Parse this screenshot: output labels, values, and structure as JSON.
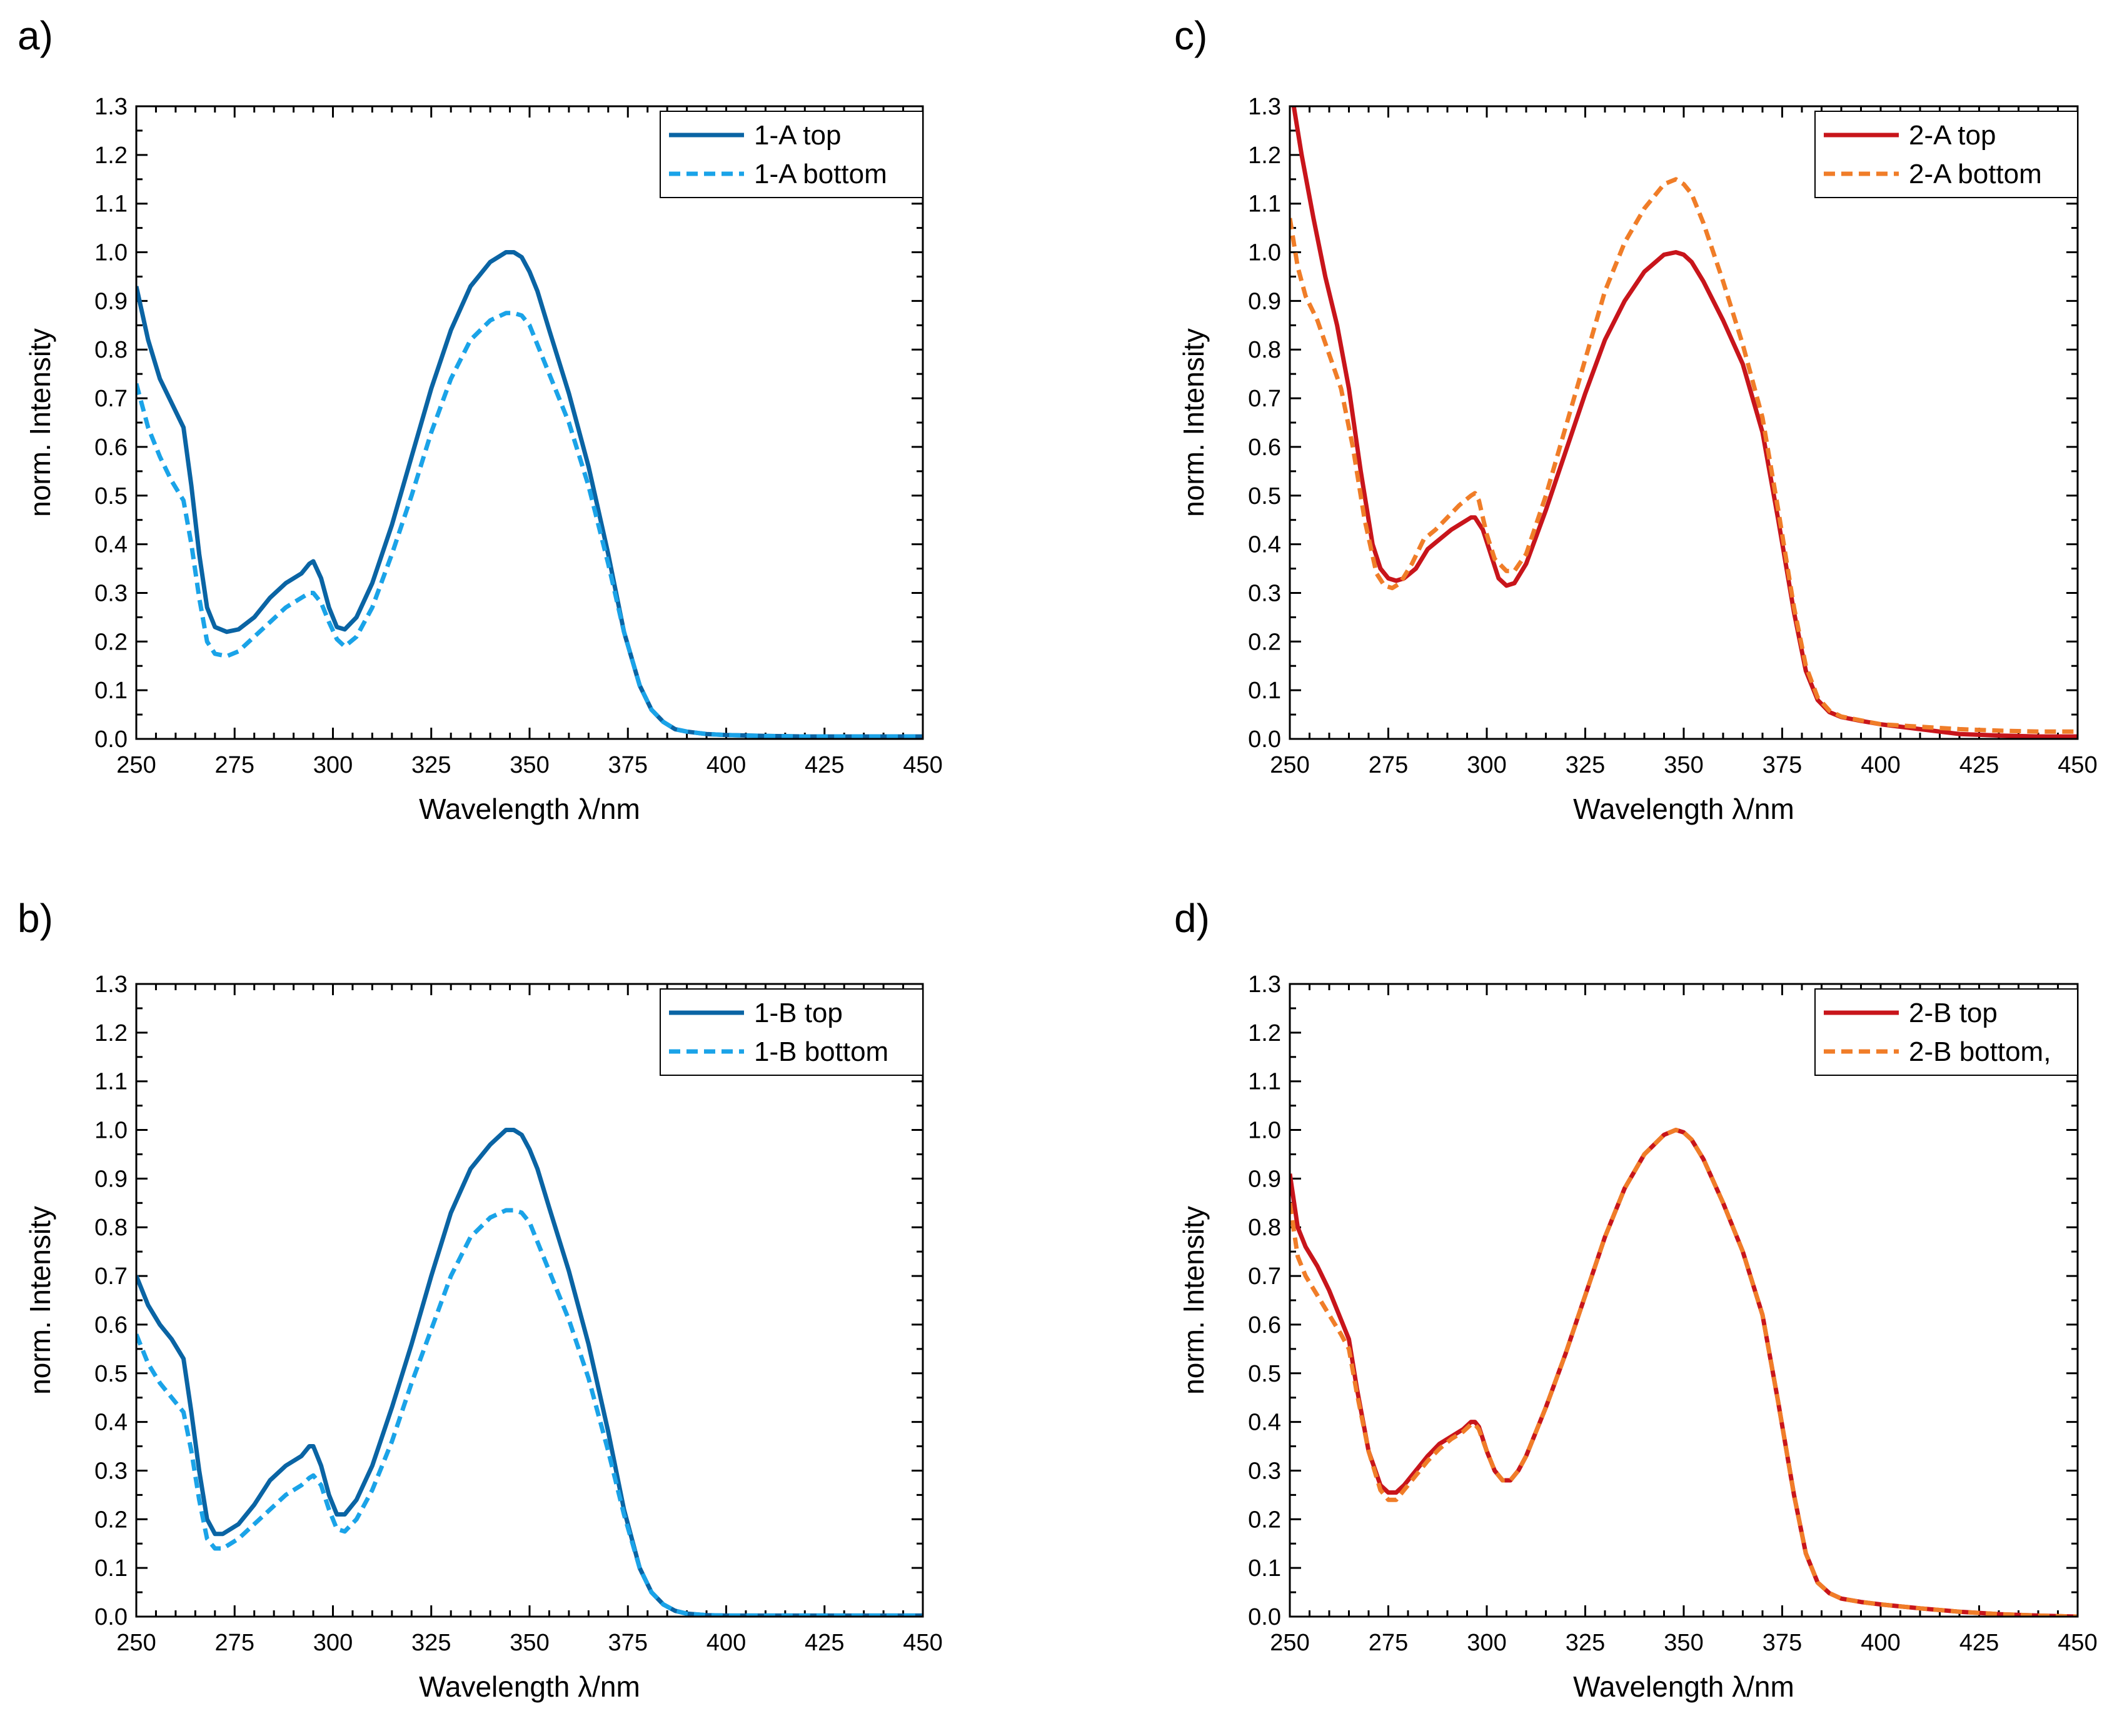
{
  "figure": {
    "panel_labels": [
      "a)",
      "b)",
      "c)",
      "d)"
    ]
  },
  "chart_data": [
    {
      "panel": "a)",
      "type": "line",
      "xlabel": "Wavelength λ/nm",
      "ylabel": "norm. Intensity",
      "xlim": [
        250,
        450
      ],
      "ylim": [
        0,
        1.3
      ],
      "xticks": [
        250,
        275,
        300,
        325,
        350,
        375,
        400,
        425,
        450
      ],
      "yticks": [
        0.0,
        0.1,
        0.2,
        0.3,
        0.4,
        0.5,
        0.6,
        0.7,
        0.8,
        0.9,
        1.0,
        1.1,
        1.2,
        1.3
      ],
      "legend_position": "top-right",
      "series": [
        {
          "name": "1-A top",
          "style": "solid",
          "color": "#0a64a4",
          "x": [
            250,
            253,
            256,
            259,
            262,
            264,
            266,
            268,
            270,
            273,
            276,
            280,
            284,
            288,
            292,
            294,
            295,
            297,
            299,
            301,
            303,
            306,
            310,
            315,
            320,
            325,
            330,
            335,
            340,
            344,
            346,
            348,
            350,
            352,
            355,
            360,
            365,
            370,
            374,
            378,
            381,
            384,
            387,
            390,
            395,
            400,
            410,
            420,
            430,
            440,
            450
          ],
          "y": [
            0.93,
            0.82,
            0.74,
            0.69,
            0.64,
            0.52,
            0.38,
            0.27,
            0.23,
            0.22,
            0.225,
            0.25,
            0.29,
            0.32,
            0.34,
            0.36,
            0.365,
            0.33,
            0.27,
            0.23,
            0.225,
            0.25,
            0.32,
            0.44,
            0.58,
            0.72,
            0.84,
            0.93,
            0.98,
            1.0,
            1.0,
            0.99,
            0.96,
            0.92,
            0.84,
            0.71,
            0.56,
            0.38,
            0.22,
            0.11,
            0.06,
            0.035,
            0.02,
            0.015,
            0.01,
            0.008,
            0.006,
            0.005,
            0.005,
            0.005,
            0.005
          ]
        },
        {
          "name": "1-A bottom",
          "style": "dashed",
          "color": "#1aa3e8",
          "x": [
            250,
            253,
            256,
            259,
            262,
            264,
            266,
            268,
            270,
            273,
            276,
            280,
            284,
            288,
            292,
            294,
            295,
            297,
            299,
            301,
            303,
            306,
            310,
            315,
            320,
            325,
            330,
            335,
            340,
            344,
            346,
            348,
            350,
            352,
            355,
            360,
            365,
            370,
            374,
            378,
            381,
            384,
            387,
            390,
            395,
            400,
            410,
            420,
            430,
            440,
            450
          ],
          "y": [
            0.73,
            0.64,
            0.58,
            0.53,
            0.49,
            0.4,
            0.29,
            0.2,
            0.175,
            0.17,
            0.18,
            0.21,
            0.24,
            0.27,
            0.29,
            0.3,
            0.3,
            0.28,
            0.24,
            0.205,
            0.19,
            0.21,
            0.27,
            0.38,
            0.5,
            0.63,
            0.74,
            0.82,
            0.86,
            0.875,
            0.875,
            0.87,
            0.85,
            0.81,
            0.75,
            0.65,
            0.52,
            0.36,
            0.22,
            0.11,
            0.06,
            0.035,
            0.02,
            0.015,
            0.01,
            0.008,
            0.006,
            0.005,
            0.005,
            0.005,
            0.005
          ]
        }
      ]
    },
    {
      "panel": "b)",
      "type": "line",
      "xlabel": "Wavelength λ/nm",
      "ylabel": "norm. Intensity",
      "xlim": [
        250,
        450
      ],
      "ylim": [
        0,
        1.3
      ],
      "xticks": [
        250,
        275,
        300,
        325,
        350,
        375,
        400,
        425,
        450
      ],
      "yticks": [
        0.0,
        0.1,
        0.2,
        0.3,
        0.4,
        0.5,
        0.6,
        0.7,
        0.8,
        0.9,
        1.0,
        1.1,
        1.2,
        1.3
      ],
      "legend_position": "top-right",
      "series": [
        {
          "name": "1-B top",
          "style": "solid",
          "color": "#0a64a4",
          "x": [
            250,
            253,
            256,
            259,
            262,
            264,
            266,
            268,
            270,
            272,
            276,
            280,
            284,
            288,
            292,
            294,
            295,
            297,
            299,
            301,
            303,
            306,
            310,
            315,
            320,
            325,
            330,
            335,
            340,
            344,
            346,
            348,
            350,
            352,
            355,
            360,
            365,
            370,
            374,
            378,
            381,
            384,
            387,
            390,
            395,
            400,
            410,
            420,
            430,
            440,
            450
          ],
          "y": [
            0.7,
            0.64,
            0.6,
            0.57,
            0.53,
            0.42,
            0.3,
            0.2,
            0.17,
            0.17,
            0.19,
            0.23,
            0.28,
            0.31,
            0.33,
            0.35,
            0.35,
            0.31,
            0.25,
            0.21,
            0.21,
            0.24,
            0.31,
            0.43,
            0.56,
            0.7,
            0.83,
            0.92,
            0.97,
            1.0,
            1.0,
            0.99,
            0.96,
            0.92,
            0.84,
            0.71,
            0.56,
            0.38,
            0.22,
            0.1,
            0.05,
            0.025,
            0.012,
            0.006,
            0.003,
            0.002,
            0.002,
            0.002,
            0.002,
            0.002,
            0.002
          ]
        },
        {
          "name": "1-B bottom",
          "style": "dashed",
          "color": "#1aa3e8",
          "x": [
            250,
            253,
            256,
            259,
            262,
            264,
            266,
            268,
            270,
            272,
            276,
            280,
            284,
            288,
            292,
            294,
            295,
            297,
            299,
            301,
            303,
            306,
            310,
            315,
            320,
            325,
            330,
            335,
            340,
            344,
            346,
            348,
            350,
            352,
            355,
            360,
            365,
            370,
            374,
            378,
            381,
            384,
            387,
            390,
            395,
            400,
            410,
            420,
            430,
            440,
            450
          ],
          "y": [
            0.58,
            0.52,
            0.48,
            0.45,
            0.42,
            0.34,
            0.24,
            0.16,
            0.14,
            0.14,
            0.16,
            0.19,
            0.22,
            0.25,
            0.27,
            0.285,
            0.29,
            0.27,
            0.22,
            0.18,
            0.175,
            0.2,
            0.26,
            0.36,
            0.48,
            0.59,
            0.7,
            0.78,
            0.82,
            0.835,
            0.835,
            0.83,
            0.81,
            0.77,
            0.71,
            0.61,
            0.49,
            0.34,
            0.21,
            0.1,
            0.05,
            0.025,
            0.012,
            0.006,
            0.003,
            0.002,
            0.002,
            0.002,
            0.002,
            0.002,
            0.002
          ]
        }
      ]
    },
    {
      "panel": "c)",
      "type": "line",
      "xlabel": "Wavelength λ/nm",
      "ylabel": "norm. Intensity",
      "xlim": [
        250,
        450
      ],
      "ylim": [
        0,
        1.3
      ],
      "xticks": [
        250,
        275,
        300,
        325,
        350,
        375,
        400,
        425,
        450
      ],
      "yticks": [
        0.0,
        0.1,
        0.2,
        0.3,
        0.4,
        0.5,
        0.6,
        0.7,
        0.8,
        0.9,
        1.0,
        1.1,
        1.2,
        1.3
      ],
      "legend_position": "top-right",
      "series": [
        {
          "name": "2-A top",
          "style": "solid",
          "color": "#c8151b",
          "x": [
            251,
            253,
            256,
            259,
            262,
            265,
            268,
            271,
            273,
            275,
            277,
            279,
            282,
            285,
            288,
            291,
            294,
            296,
            297,
            299,
            301,
            303,
            305,
            307,
            310,
            315,
            320,
            325,
            330,
            335,
            340,
            345,
            348,
            350,
            352,
            355,
            360,
            365,
            370,
            374,
            378,
            381,
            384,
            387,
            390,
            395,
            400,
            410,
            420,
            430,
            440,
            450
          ],
          "y": [
            1.3,
            1.2,
            1.07,
            0.95,
            0.85,
            0.72,
            0.55,
            0.4,
            0.35,
            0.33,
            0.325,
            0.33,
            0.35,
            0.39,
            0.41,
            0.43,
            0.445,
            0.455,
            0.455,
            0.43,
            0.38,
            0.33,
            0.315,
            0.32,
            0.36,
            0.47,
            0.59,
            0.71,
            0.82,
            0.9,
            0.96,
            0.995,
            1.0,
            0.995,
            0.98,
            0.94,
            0.86,
            0.77,
            0.63,
            0.45,
            0.26,
            0.14,
            0.08,
            0.055,
            0.045,
            0.037,
            0.03,
            0.02,
            0.01,
            0.007,
            0.005,
            0.005
          ]
        },
        {
          "name": "2-A bottom",
          "style": "dashed",
          "color": "#f07d28",
          "x": [
            250,
            252,
            254,
            257,
            260,
            263,
            266,
            269,
            272,
            274,
            276,
            278,
            281,
            284,
            287,
            290,
            293,
            296,
            297,
            298,
            300,
            302,
            305,
            307,
            310,
            315,
            320,
            325,
            330,
            335,
            340,
            345,
            348,
            350,
            352,
            355,
            360,
            365,
            370,
            374,
            378,
            381,
            384,
            387,
            390,
            395,
            400,
            410,
            420,
            430,
            440,
            450
          ],
          "y": [
            1.07,
            0.97,
            0.91,
            0.86,
            0.79,
            0.72,
            0.6,
            0.45,
            0.34,
            0.315,
            0.31,
            0.32,
            0.36,
            0.41,
            0.43,
            0.455,
            0.48,
            0.5,
            0.505,
            0.49,
            0.42,
            0.37,
            0.345,
            0.345,
            0.38,
            0.5,
            0.64,
            0.78,
            0.92,
            1.02,
            1.09,
            1.14,
            1.15,
            1.14,
            1.12,
            1.06,
            0.94,
            0.81,
            0.66,
            0.47,
            0.27,
            0.15,
            0.085,
            0.058,
            0.046,
            0.038,
            0.03,
            0.025,
            0.02,
            0.017,
            0.015,
            0.015
          ]
        }
      ]
    },
    {
      "panel": "d)",
      "type": "line",
      "xlabel": "Wavelength λ/nm",
      "ylabel": "norm. Intensity",
      "xlim": [
        250,
        450
      ],
      "ylim": [
        0,
        1.3
      ],
      "xticks": [
        250,
        275,
        300,
        325,
        350,
        375,
        400,
        425,
        450
      ],
      "yticks": [
        0.0,
        0.1,
        0.2,
        0.3,
        0.4,
        0.5,
        0.6,
        0.7,
        0.8,
        0.9,
        1.0,
        1.1,
        1.2,
        1.3
      ],
      "legend_position": "top-right",
      "series": [
        {
          "name": "2-B top",
          "style": "solid",
          "color": "#c8151b",
          "x": [
            250,
            252,
            254,
            257,
            260,
            263,
            265,
            267,
            270,
            273,
            275,
            277,
            279,
            282,
            285,
            288,
            291,
            294,
            296,
            297,
            298,
            300,
            302,
            304,
            306,
            308,
            310,
            315,
            320,
            325,
            330,
            335,
            340,
            345,
            348,
            350,
            352,
            355,
            360,
            365,
            370,
            374,
            378,
            381,
            384,
            387,
            390,
            395,
            400,
            410,
            420,
            430,
            440,
            450
          ],
          "y": [
            0.91,
            0.8,
            0.76,
            0.72,
            0.67,
            0.61,
            0.57,
            0.47,
            0.34,
            0.27,
            0.255,
            0.255,
            0.27,
            0.3,
            0.33,
            0.355,
            0.37,
            0.385,
            0.4,
            0.4,
            0.39,
            0.34,
            0.3,
            0.28,
            0.28,
            0.3,
            0.33,
            0.43,
            0.54,
            0.66,
            0.78,
            0.88,
            0.95,
            0.99,
            1.0,
            0.995,
            0.98,
            0.94,
            0.85,
            0.75,
            0.62,
            0.44,
            0.25,
            0.13,
            0.07,
            0.048,
            0.037,
            0.03,
            0.025,
            0.017,
            0.01,
            0.005,
            0.002,
            0.0
          ]
        },
        {
          "name": "2-B bottom,",
          "style": "dashed",
          "color": "#f07d28",
          "x": [
            250,
            252,
            254,
            257,
            260,
            263,
            265,
            267,
            270,
            273,
            275,
            277,
            279,
            282,
            285,
            288,
            291,
            294,
            296,
            297,
            298,
            300,
            302,
            304,
            306,
            308,
            310,
            315,
            320,
            325,
            330,
            335,
            340,
            345,
            348,
            350,
            352,
            355,
            360,
            365,
            370,
            374,
            378,
            381,
            384,
            387,
            390,
            395,
            400,
            410,
            420,
            430,
            440,
            450
          ],
          "y": [
            0.85,
            0.74,
            0.7,
            0.66,
            0.62,
            0.58,
            0.55,
            0.46,
            0.34,
            0.26,
            0.24,
            0.24,
            0.26,
            0.29,
            0.32,
            0.345,
            0.365,
            0.38,
            0.395,
            0.395,
            0.385,
            0.34,
            0.3,
            0.28,
            0.28,
            0.3,
            0.33,
            0.43,
            0.54,
            0.66,
            0.78,
            0.88,
            0.95,
            0.99,
            1.0,
            0.995,
            0.98,
            0.94,
            0.85,
            0.75,
            0.62,
            0.44,
            0.25,
            0.13,
            0.07,
            0.048,
            0.037,
            0.03,
            0.025,
            0.017,
            0.01,
            0.005,
            0.002,
            0.0
          ]
        }
      ]
    }
  ]
}
